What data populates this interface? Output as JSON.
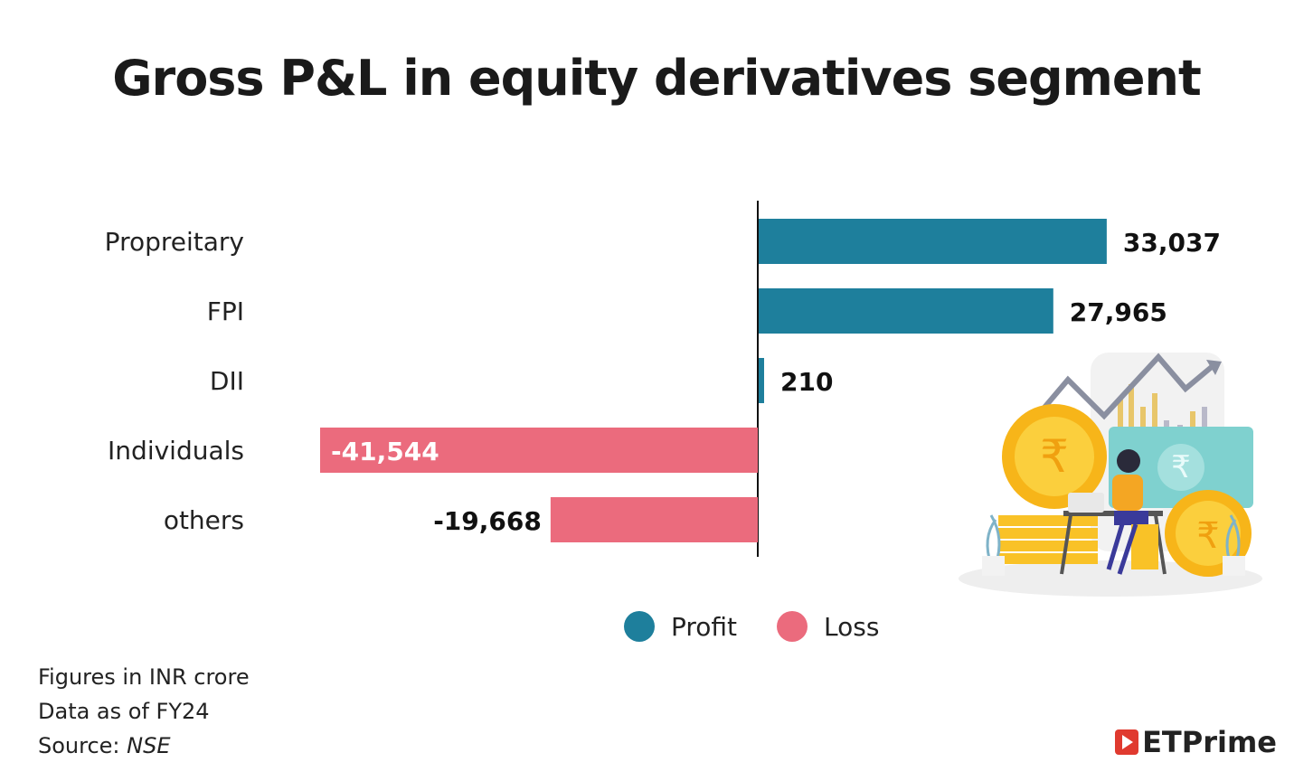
{
  "title": "Gross P&L in equity derivatives segment",
  "chart_data": {
    "type": "bar",
    "orientation": "horizontal",
    "title": "Gross P&L in equity derivatives segment",
    "categories": [
      "Propreitary",
      "FPI",
      "DII",
      "Individuals",
      "others"
    ],
    "values": [
      33037,
      27965,
      210,
      -41544,
      -19668
    ],
    "data_labels": [
      "33,037",
      "27,965",
      "210",
      "-41,544",
      "-19,668"
    ],
    "xlim": [
      -42000,
      33500
    ],
    "grid": false,
    "legend_position": "bottom",
    "legend": [
      {
        "name": "Profit",
        "color": "#1e7f9c"
      },
      {
        "name": "Loss",
        "color": "#eb6b7d"
      }
    ]
  },
  "notes": {
    "line1": "Figures in INR crore",
    "line2": "Data as of FY24",
    "source_label": "Source: ",
    "source_name": "NSE"
  },
  "brand": {
    "text": "ETPrime",
    "icon": "play-logo-icon"
  },
  "illustration": {
    "icon": "finance-woman-laptop-rupee-coins-illustration"
  }
}
